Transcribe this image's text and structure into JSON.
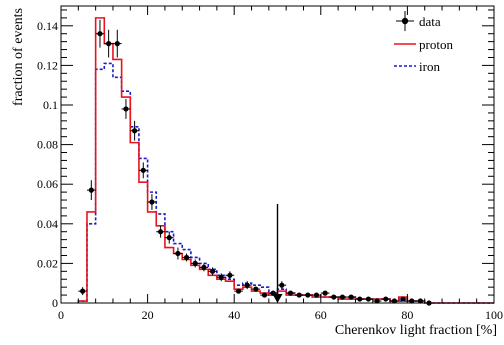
{
  "chart_data": {
    "type": "line",
    "title": "",
    "xlabel": "Cherenkov light fraction [%]",
    "ylabel": "fraction of events",
    "xlim": [
      0,
      100
    ],
    "ylim": [
      0,
      0.15
    ],
    "x_ticks": [
      0,
      20,
      40,
      60,
      80,
      100
    ],
    "y_ticks": [
      0,
      0.02,
      0.04,
      0.06,
      0.08,
      0.1,
      0.12,
      0.14
    ],
    "y_tick_labels": [
      "0",
      "0.02",
      "0.04",
      "0.06",
      "0.08",
      "0.1",
      "0.12",
      "0.14"
    ],
    "x_tick_labels": [
      "0",
      "20",
      "40",
      "60",
      "80",
      "100"
    ],
    "grid": false,
    "legend_position": "top-right",
    "colors": {
      "data": "#000000",
      "proton": "#e8141d",
      "iron": "#1a1acc"
    },
    "bin_width": 2,
    "bin_start": 4,
    "series": [
      {
        "name": "data",
        "style": "points-with-error-bars",
        "x": [
          5,
          7,
          9,
          11,
          13,
          15,
          17,
          19,
          21,
          23,
          25,
          27,
          29,
          31,
          33,
          35,
          37,
          39,
          41,
          43,
          45,
          47,
          49,
          51,
          53,
          55,
          57,
          59,
          61,
          63,
          65,
          67,
          69,
          71,
          73,
          75,
          77,
          79,
          81,
          83,
          85
        ],
        "y": [
          0.006,
          0.057,
          0.136,
          0.131,
          0.131,
          0.098,
          0.087,
          0.067,
          0.051,
          0.036,
          0.033,
          0.025,
          0.023,
          0.02,
          0.018,
          0.016,
          0.013,
          0.014,
          0.006,
          0.009,
          0.007,
          0.004,
          0.005,
          0.009,
          0.005,
          0.004,
          0.004,
          0.004,
          0.005,
          0.003,
          0.003,
          0.003,
          0.002,
          0.002,
          0.001,
          0.002,
          0.001,
          0.002,
          0.001,
          0.001,
          0.0
        ],
        "yerr": [
          0.002,
          0.005,
          0.007,
          0.007,
          0.007,
          0.005,
          0.005,
          0.004,
          0.004,
          0.003,
          0.003,
          0.003,
          0.002,
          0.002,
          0.002,
          0.002,
          0.002,
          0.002,
          0.001,
          0.002,
          0.001,
          0.001,
          0.001,
          0.002,
          0.001,
          0.001,
          0.001,
          0.001,
          0.001,
          0.001,
          0.001,
          0.001,
          0.001,
          0.001,
          0.001,
          0.001,
          0.001,
          0.001,
          0.001,
          0.001,
          0.001
        ]
      },
      {
        "name": "proton",
        "style": "step",
        "values": [
          0.001,
          0.046,
          0.144,
          0.131,
          0.123,
          0.104,
          0.081,
          0.061,
          0.046,
          0.039,
          0.028,
          0.025,
          0.022,
          0.019,
          0.017,
          0.014,
          0.012,
          0.011,
          0.007,
          0.008,
          0.006,
          0.005,
          0.004,
          0.006,
          0.004,
          0.004,
          0.004,
          0.003,
          0.003,
          0.003,
          0.002,
          0.002,
          0.002,
          0.002,
          0.002,
          0.002,
          0.001,
          0.003,
          0.001,
          0.001,
          0.0,
          0.0,
          0.0,
          0.0,
          0.0,
          0.0,
          0.0,
          0.0
        ]
      },
      {
        "name": "iron",
        "style": "step-dashed",
        "values": [
          0.001,
          0.04,
          0.118,
          0.121,
          0.114,
          0.107,
          0.089,
          0.073,
          0.056,
          0.045,
          0.036,
          0.03,
          0.027,
          0.023,
          0.02,
          0.017,
          0.014,
          0.012,
          0.009,
          0.01,
          0.009,
          0.008,
          0.005,
          0.007,
          0.005,
          0.004,
          0.004,
          0.004,
          0.003,
          0.003,
          0.003,
          0.003,
          0.002,
          0.002,
          0.002,
          0.002,
          0.001,
          0.001,
          0.001,
          0.001,
          0.0,
          0.0,
          0.0,
          0.0,
          0.0,
          0.0,
          0.0,
          0.0
        ]
      }
    ],
    "annotations": [
      {
        "type": "arrow-down",
        "x": 50,
        "y_top": 0.05,
        "y_bottom": 0.0
      }
    ]
  }
}
